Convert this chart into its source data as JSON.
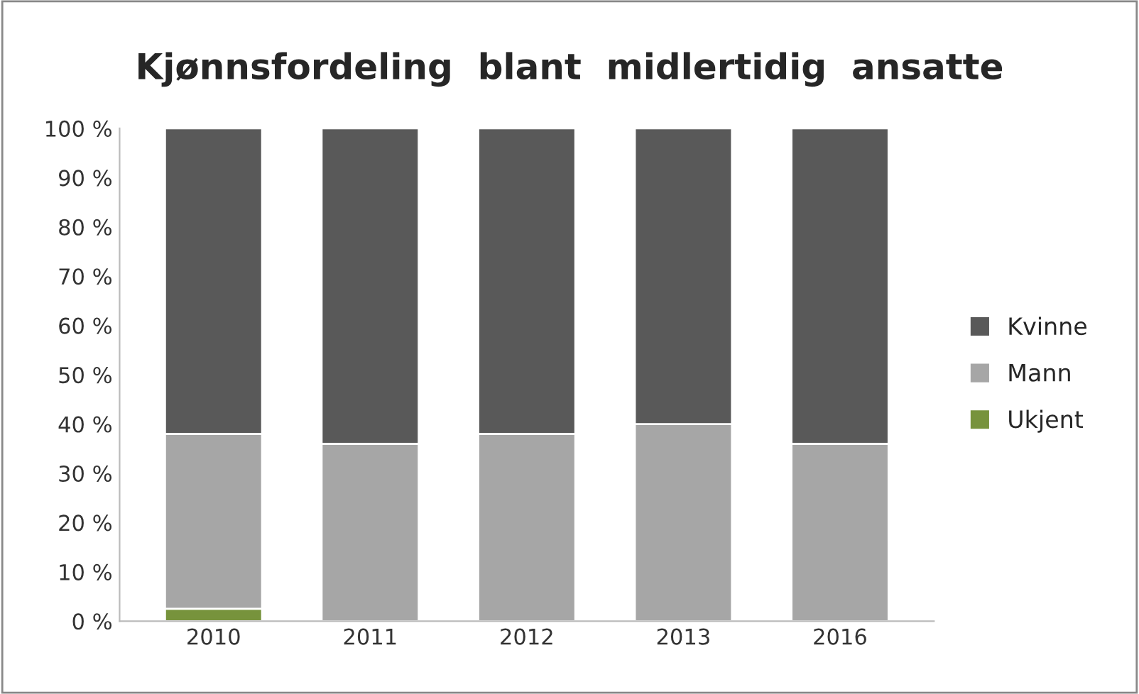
{
  "chart_data": {
    "type": "bar",
    "title": "Kjønnsfordeling  blant  midlertidig  ansatte",
    "categories": [
      "2010",
      "2011",
      "2012",
      "2013",
      "2016"
    ],
    "stacked": true,
    "series": [
      {
        "name": "Ukjent",
        "color": "#77933c",
        "values": [
          2.5,
          0,
          0,
          0,
          0
        ]
      },
      {
        "name": "Mann",
        "color": "#a6a6a6",
        "values": [
          35.5,
          36,
          38,
          40,
          36
        ]
      },
      {
        "name": "Kvinne",
        "color": "#595959",
        "values": [
          62,
          64,
          62,
          60,
          64
        ]
      }
    ],
    "ylim": [
      0,
      100
    ],
    "yticks": [
      {
        "value": 0,
        "label": "0 %"
      },
      {
        "value": 10,
        "label": "10 %"
      },
      {
        "value": 20,
        "label": "20 %"
      },
      {
        "value": 30,
        "label": "30 %"
      },
      {
        "value": 40,
        "label": "40 %"
      },
      {
        "value": 50,
        "label": "50 %"
      },
      {
        "value": 60,
        "label": "60 %"
      },
      {
        "value": 70,
        "label": "70 %"
      },
      {
        "value": 80,
        "label": "80 %"
      },
      {
        "value": 90,
        "label": "90 %"
      },
      {
        "value": 100,
        "label": "100 %"
      }
    ],
    "grid": false,
    "legend": "right"
  }
}
